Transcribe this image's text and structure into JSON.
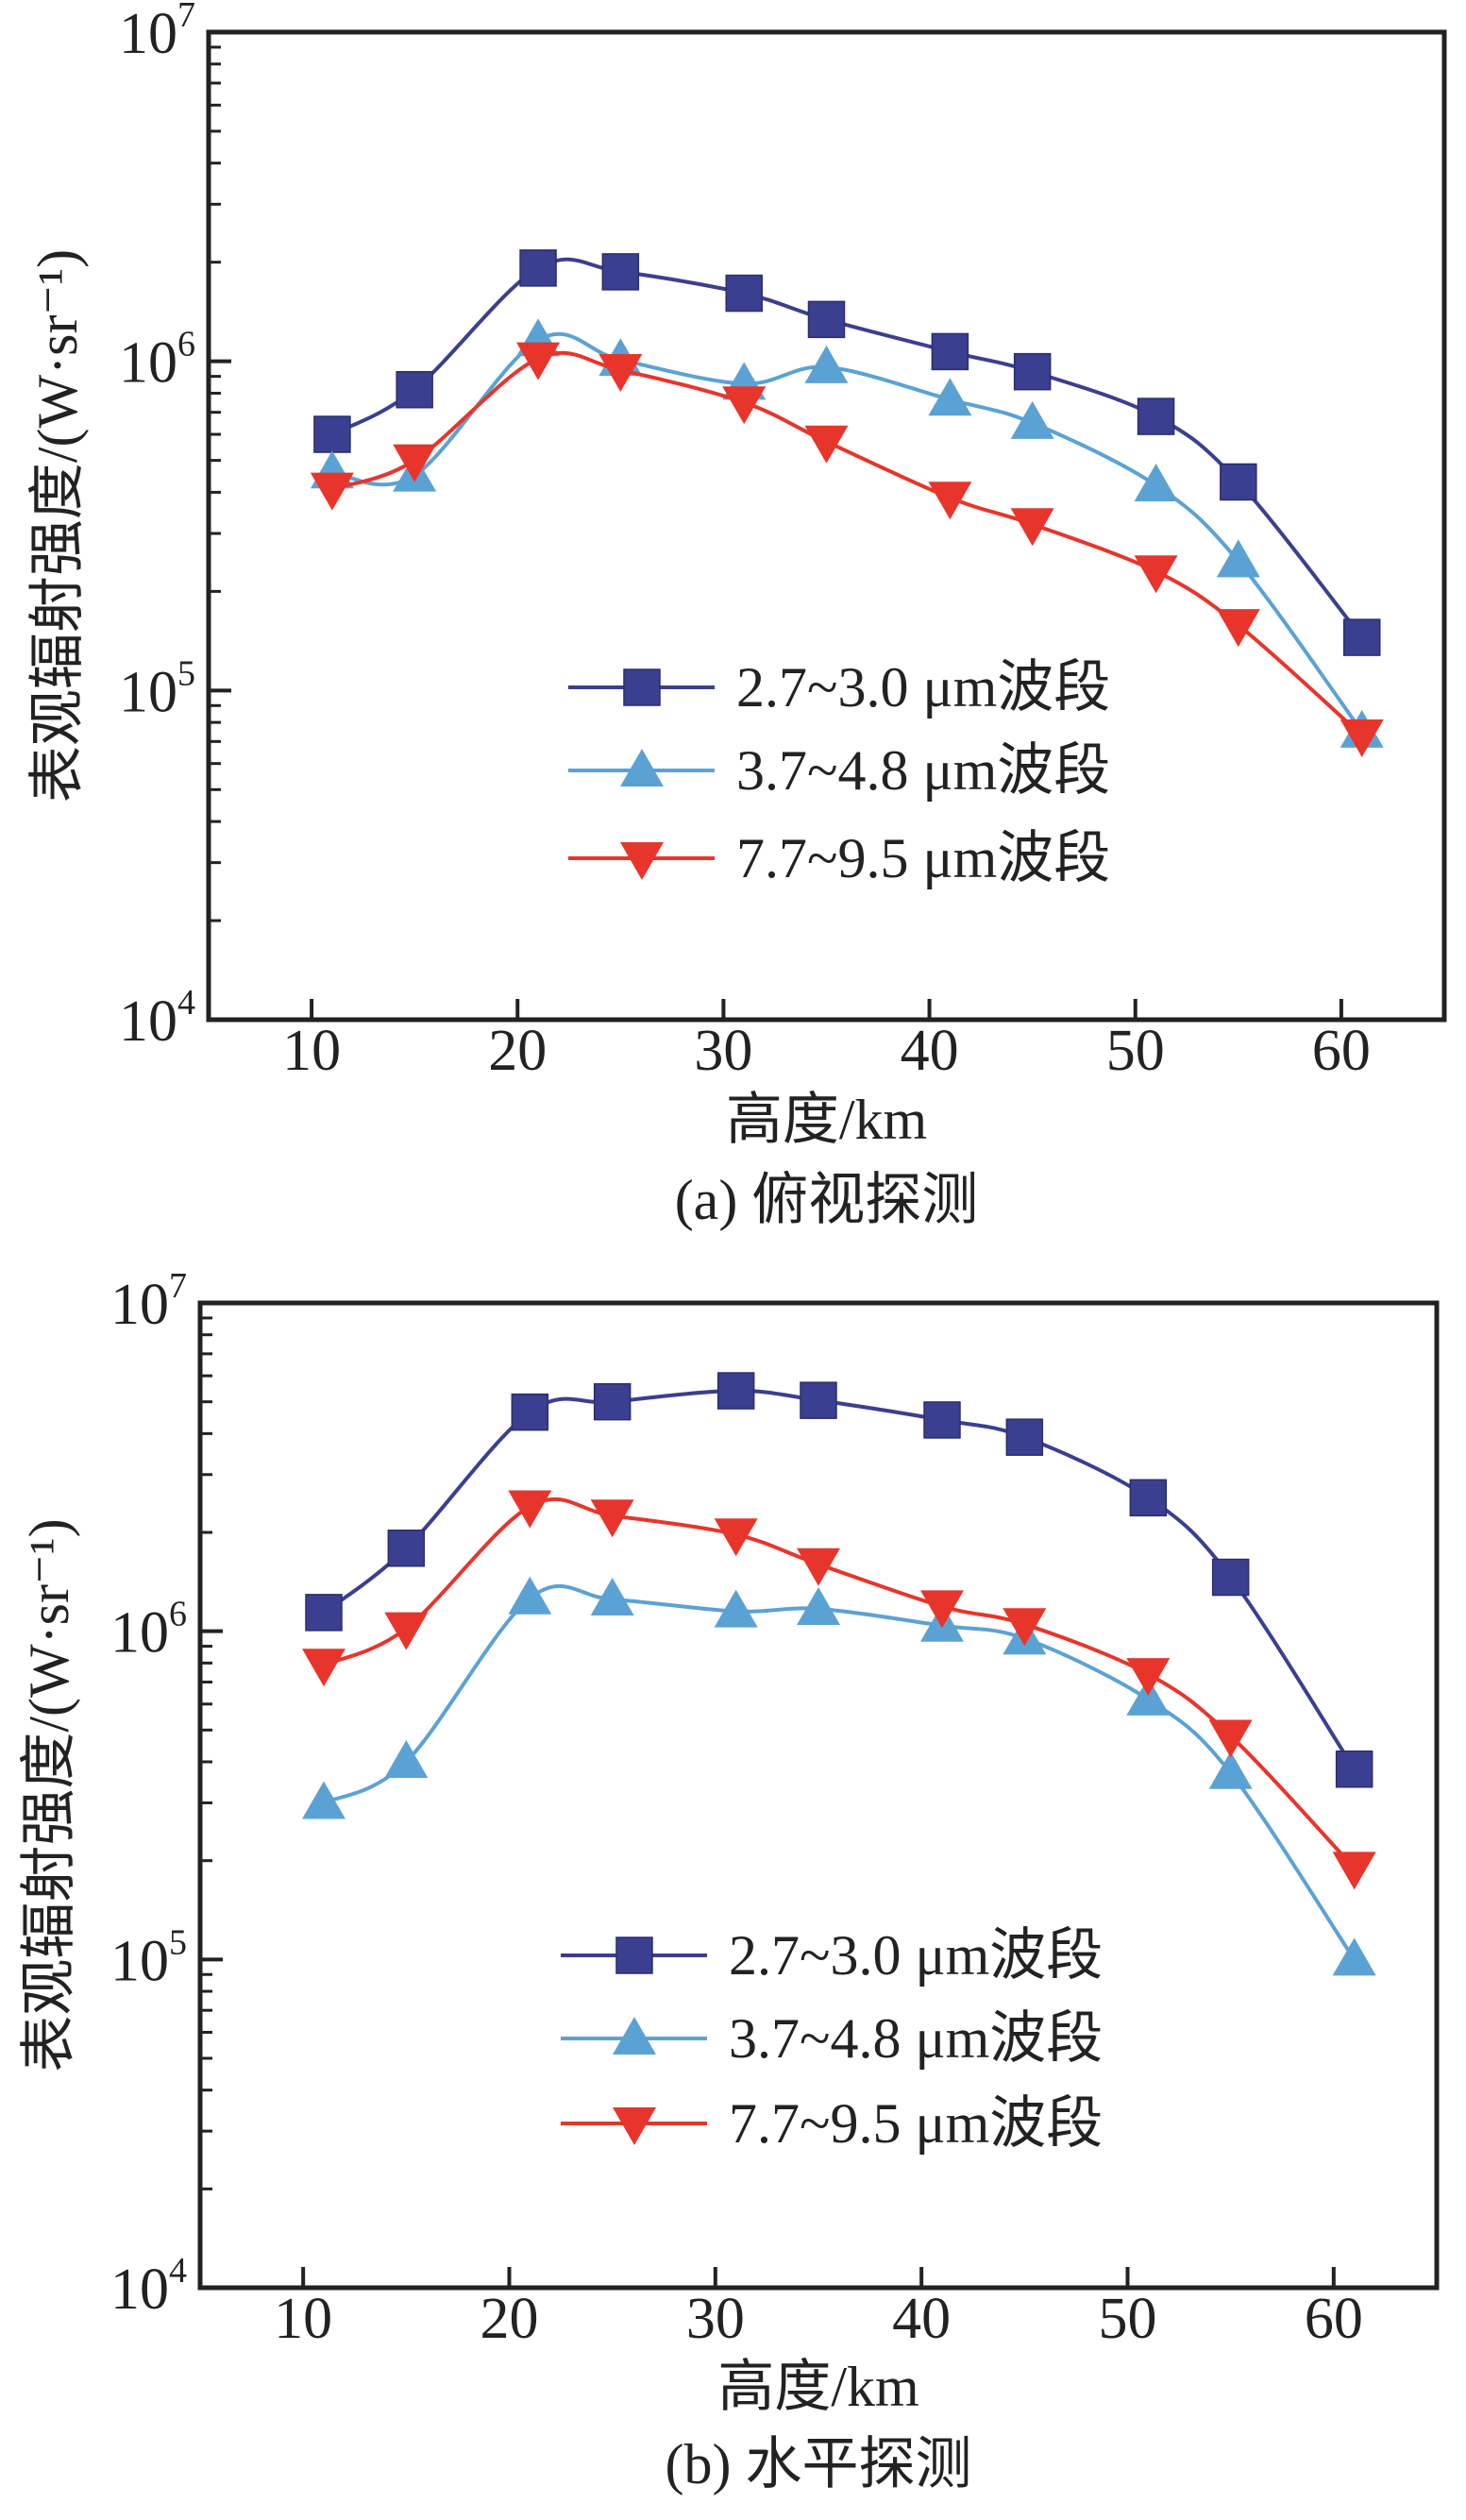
{
  "chart_data": [
    {
      "type": "line",
      "caption": "(a) 俯视探测",
      "xlabel": "高度/km",
      "ylabel": "表观辐射强度/(W·sr⁻¹)",
      "xlim": [
        5,
        65
      ],
      "ylim": [
        10000,
        10000000
      ],
      "yscale": "log",
      "xticks": [
        10,
        20,
        30,
        40,
        50,
        60
      ],
      "yticks": [
        {
          "base": "10",
          "exp": "4",
          "value": 10000
        },
        {
          "base": "10",
          "exp": "5",
          "value": 100000
        },
        {
          "base": "10",
          "exp": "6",
          "value": 1000000
        },
        {
          "base": "10",
          "exp": "7",
          "value": 10000000
        }
      ],
      "grid": false,
      "legend_position": "center-bottom",
      "x": [
        11,
        15,
        21,
        25,
        31,
        35,
        41,
        45,
        51,
        55,
        61
      ],
      "series": [
        {
          "name": "2.7~3.0 μm波段",
          "marker": "square",
          "color": "#3b3f8f",
          "values": [
            600000,
            820000,
            1920000,
            1870000,
            1610000,
            1340000,
            1070000,
            930000,
            680000,
            430000,
            145000
          ]
        },
        {
          "name": "3.7~4.8 μm波段",
          "marker": "triangle-up",
          "color": "#5ba2d4",
          "values": [
            460000,
            450000,
            1160000,
            1010000,
            855000,
            960000,
            765000,
            650000,
            420000,
            247000,
            75000
          ]
        },
        {
          "name": "7.7~9.5 μm波段",
          "marker": "triangle-down",
          "color": "#e8352b",
          "values": [
            410000,
            500000,
            1020000,
            940000,
            750000,
            570000,
            385000,
            320000,
            230000,
            158000,
            73000
          ]
        }
      ]
    },
    {
      "type": "line",
      "caption": "(b) 水平探测",
      "xlabel": "高度/km",
      "ylabel": "表观辐射强度/(W·sr⁻¹)",
      "xlim": [
        5,
        65
      ],
      "ylim": [
        10000,
        10000000
      ],
      "yscale": "log",
      "xticks": [
        10,
        20,
        30,
        40,
        50,
        60
      ],
      "yticks": [
        {
          "base": "10",
          "exp": "4",
          "value": 10000
        },
        {
          "base": "10",
          "exp": "5",
          "value": 100000
        },
        {
          "base": "10",
          "exp": "6",
          "value": 1000000
        },
        {
          "base": "10",
          "exp": "7",
          "value": 10000000
        }
      ],
      "grid": false,
      "legend_position": "center-bottom",
      "x": [
        11,
        15,
        21,
        25,
        31,
        35,
        41,
        45,
        51,
        55,
        61
      ],
      "series": [
        {
          "name": "2.7~3.0 μm波段",
          "marker": "square",
          "color": "#3b3f8f",
          "values": [
            1140000,
            1790000,
            4650000,
            5000000,
            5400000,
            5050000,
            4400000,
            3900000,
            2550000,
            1460000,
            380000
          ]
        },
        {
          "name": "3.7~4.8 μm波段",
          "marker": "triangle-up",
          "color": "#5ba2d4",
          "values": [
            300000,
            400000,
            1260000,
            1250000,
            1150000,
            1170000,
            1040000,
            950000,
            620000,
            370000,
            100000
          ]
        },
        {
          "name": "7.7~9.5 μm波段",
          "marker": "triangle-down",
          "color": "#e8352b",
          "values": [
            790000,
            1020000,
            2400000,
            2250000,
            1970000,
            1600000,
            1190000,
            1050000,
            740000,
            480000,
            190000
          ]
        }
      ]
    }
  ]
}
